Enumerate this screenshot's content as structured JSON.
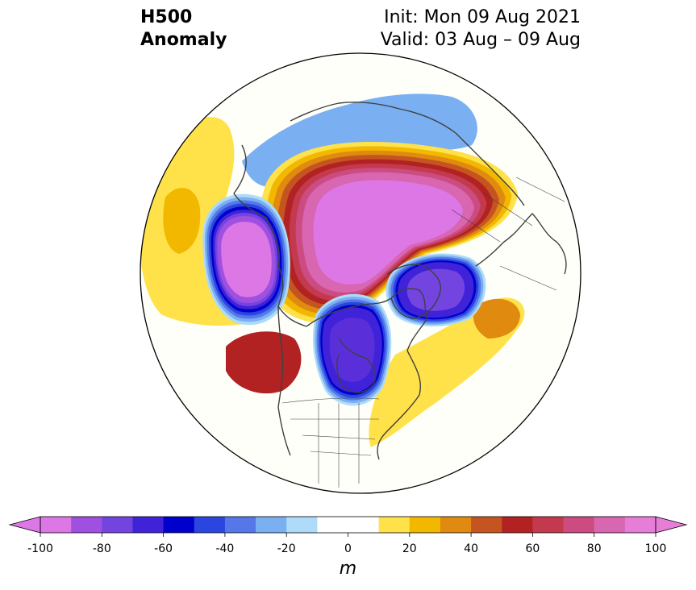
{
  "header": {
    "title_line1": "H500",
    "title_line2": "Anomaly",
    "init_text": "Init: Mon 09 Aug 2021",
    "valid_text": "Valid: 03 Aug – 09 Aug"
  },
  "colorbar": {
    "unit": "m",
    "ticks": [
      "-100",
      "-80",
      "-60",
      "-40",
      "-20",
      "0",
      "20",
      "40",
      "60",
      "80",
      "100"
    ],
    "bins": [
      {
        "range": "-100 to -90",
        "color": "#dd77e6"
      },
      {
        "range": "-90 to -80",
        "color": "#a050e0"
      },
      {
        "range": "-80 to -70",
        "color": "#7444e0"
      },
      {
        "range": "-70 to -60",
        "color": "#4022d8"
      },
      {
        "range": "-60 to -50",
        "color": "#0000cd"
      },
      {
        "range": "-50 to -40",
        "color": "#2a45e0"
      },
      {
        "range": "-40 to -30",
        "color": "#5577e8"
      },
      {
        "range": "-30 to -20",
        "color": "#7ab0f2"
      },
      {
        "range": "-20 to -10",
        "color": "#aedbfa"
      },
      {
        "range": "-10 to 0",
        "color": "#ffffff"
      },
      {
        "range": "0 to 10",
        "color": "#ffffff"
      },
      {
        "range": "10 to 20",
        "color": "#ffe14a"
      },
      {
        "range": "20 to 30",
        "color": "#f2b800"
      },
      {
        "range": "30 to 40",
        "color": "#e08a10"
      },
      {
        "range": "40 to 50",
        "color": "#c55520"
      },
      {
        "range": "50 to 60",
        "color": "#b22222"
      },
      {
        "range": "60 to 70",
        "color": "#c33a4f"
      },
      {
        "range": "70 to 80",
        "color": "#cc4c82"
      },
      {
        "range": "80 to 90",
        "color": "#d866b0"
      },
      {
        "range": "90 to 100",
        "color": "#e67ed8"
      }
    ],
    "extend_low_color": "#dd77e6",
    "extend_high_color": "#e67ed8"
  },
  "map": {
    "projection": "north-polar-stereographic",
    "ocean_color": "#fffffa",
    "coastline_color": "#404040",
    "features": [
      {
        "name": "western-ridge-outer",
        "value": 10,
        "color": "#ffe14a"
      },
      {
        "name": "western-ridge-inner",
        "value": 20,
        "color": "#f2b800"
      },
      {
        "name": "arctic-ridge",
        "value": 100,
        "color": "#dd77e6"
      },
      {
        "name": "siberia-trough",
        "value": -30,
        "color": "#7ab0f2"
      },
      {
        "name": "alaska-trough",
        "value": -100,
        "color": "#dd77e6"
      },
      {
        "name": "hudson-trough",
        "value": -80,
        "color": "#5a2fd9"
      },
      {
        "name": "scandinavia-trough",
        "value": -80,
        "color": "#7444e0"
      },
      {
        "name": "pacific-nw-ridge",
        "value": 60,
        "color": "#b22222"
      },
      {
        "name": "atlantic-ridge",
        "value": 30,
        "color": "#e08a10"
      },
      {
        "name": "east-us-ridge",
        "value": 10,
        "color": "#ffe14a"
      }
    ]
  }
}
